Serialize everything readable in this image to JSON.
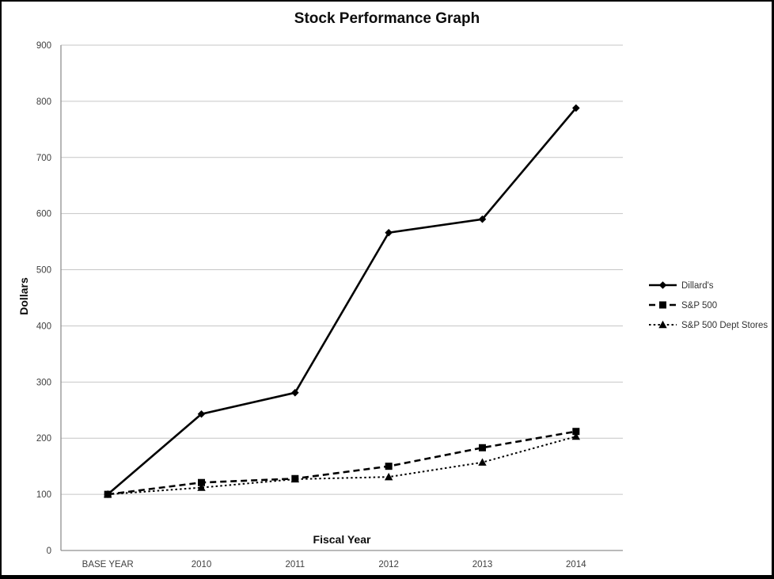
{
  "chart_data": {
    "type": "line",
    "title": "Stock Performance Graph",
    "xlabel": "Fiscal Year",
    "ylabel": "Dollars",
    "categories": [
      "BASE YEAR",
      "2010",
      "2011",
      "2012",
      "2013",
      "2014"
    ],
    "series": [
      {
        "name": "Dillard's",
        "marker": "diamond",
        "line_style": "solid",
        "values": [
          100,
          243,
          281,
          566,
          590,
          788
        ]
      },
      {
        "name": "S&P 500",
        "marker": "square",
        "line_style": "dashed",
        "values": [
          100,
          121,
          128,
          150,
          183,
          212
        ]
      },
      {
        "name": "S&P 500 Dept Stores",
        "marker": "triangle",
        "line_style": "dotted",
        "values": [
          100,
          112,
          127,
          131,
          157,
          203
        ]
      }
    ],
    "ylim": [
      0,
      900
    ],
    "ytick_step": 100,
    "grid": true,
    "legend_position": "right",
    "colors": {
      "series": "#000000",
      "gridline": "#c6c6c6",
      "axis": "#909090",
      "tick_label": "#404040",
      "legend_label": "#333333",
      "border": "#000000",
      "background": "#ffffff"
    }
  }
}
